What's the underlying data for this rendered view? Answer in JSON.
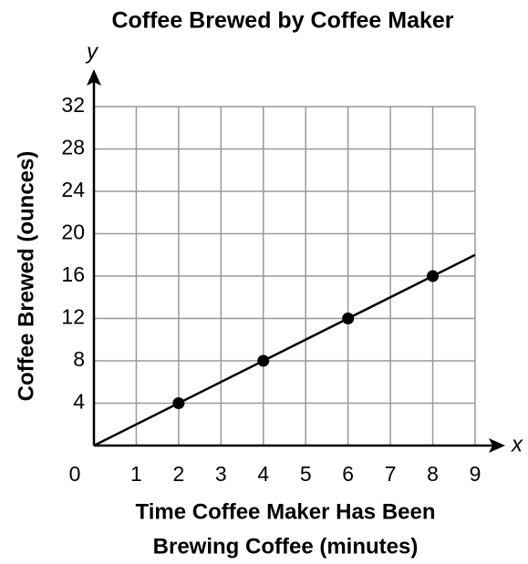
{
  "chart_data": {
    "type": "line",
    "title": "Coffee Brewed by Coffee Maker",
    "ylabel": "Coffee Brewed (ounces)",
    "xlabel": [
      "Time Coffee Maker Has Been",
      "Brewing Coffee (minutes)"
    ],
    "x_axis_letter": "x",
    "y_axis_letter": "y",
    "xlim": [
      0,
      9
    ],
    "ylim": [
      0,
      32
    ],
    "xticks": [
      0,
      1,
      2,
      3,
      4,
      5,
      6,
      7,
      8,
      9
    ],
    "yticks": [
      4,
      8,
      12,
      16,
      20,
      24,
      28,
      32
    ],
    "grid": true,
    "color": "#000000",
    "line": {
      "x": [
        0,
        9
      ],
      "values": [
        0,
        18
      ]
    },
    "points": {
      "x": [
        2,
        4,
        6,
        8
      ],
      "values": [
        4,
        8,
        12,
        16
      ]
    }
  }
}
